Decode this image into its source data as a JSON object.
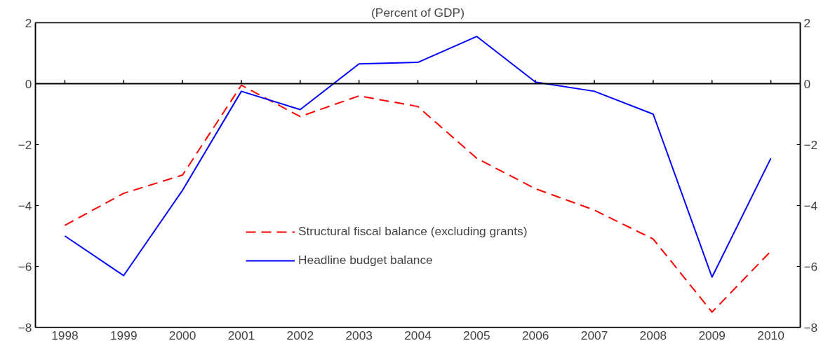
{
  "chart_data": {
    "type": "line",
    "title": "(Percent of GDP)",
    "categories": [
      "1998",
      "1999",
      "2000",
      "2001",
      "2002",
      "2003",
      "2004",
      "2005",
      "2006",
      "2007",
      "2008",
      "2009",
      "2010"
    ],
    "series": [
      {
        "name": "Structural fiscal balance (excluding grants)",
        "color": "#ff0000",
        "line_style": "dashed",
        "values": [
          -4.65,
          -3.6,
          -3.0,
          -0.05,
          -1.08,
          -0.4,
          -0.75,
          -2.45,
          -3.45,
          -4.15,
          -5.1,
          -7.5,
          -5.5
        ]
      },
      {
        "name": "Headline budget balance",
        "color": "#0000ff",
        "line_style": "solid",
        "values": [
          -5.0,
          -6.3,
          -3.5,
          -0.25,
          -0.85,
          0.65,
          0.7,
          1.55,
          0.05,
          -0.25,
          -1.0,
          -6.35,
          -2.45
        ]
      }
    ],
    "ylim": [
      -8,
      2
    ],
    "yticks": [
      -8,
      -6,
      -4,
      -2,
      0,
      2
    ],
    "y2lim": [
      -8,
      2
    ],
    "y2ticks": [
      -8,
      -6,
      -4,
      -2,
      0,
      2
    ],
    "ref_lines": [
      {
        "axis": "y",
        "value": 0,
        "color": "#000000"
      }
    ],
    "legend": "bottom",
    "grid": false,
    "marker": "none"
  }
}
